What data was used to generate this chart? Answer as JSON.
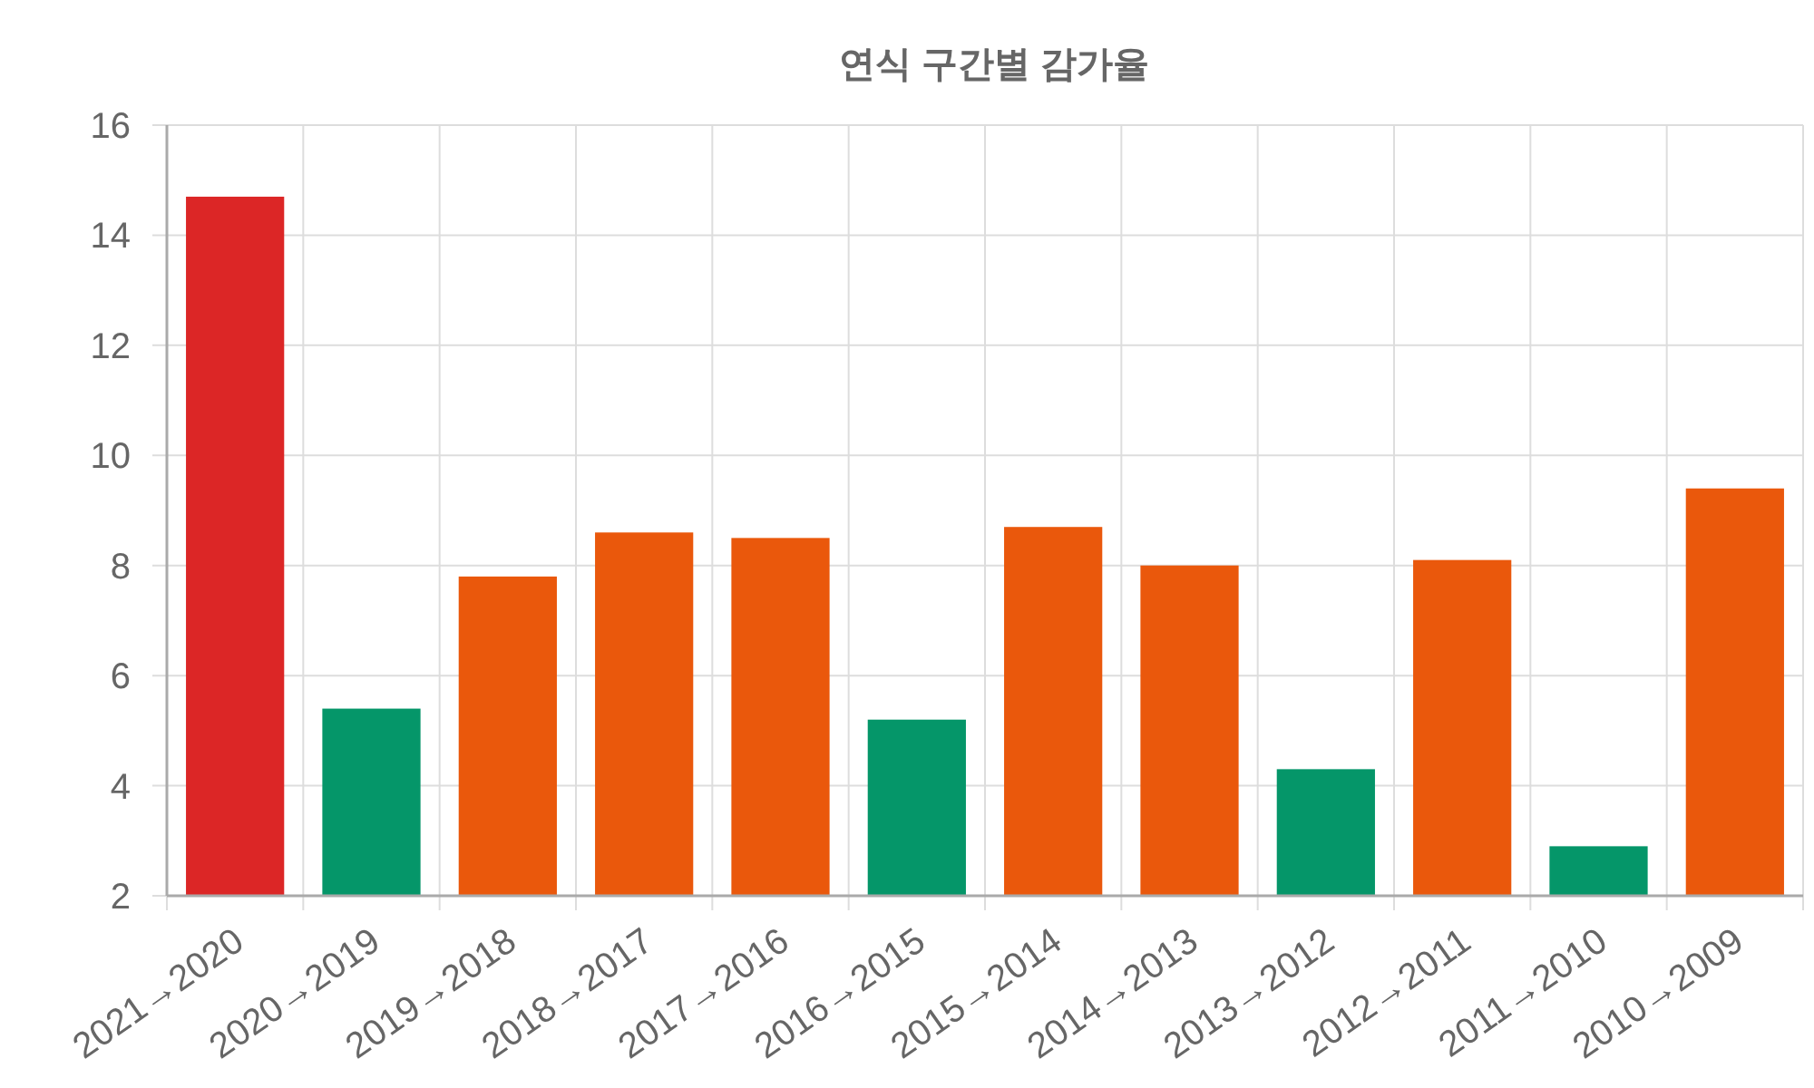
{
  "chart_data": {
    "type": "bar",
    "title": "연식 구간별 감가율",
    "categories": [
      "2021→2020",
      "2020→2019",
      "2019→2018",
      "2018→2017",
      "2017→2016",
      "2016→2015",
      "2015→2014",
      "2014→2013",
      "2013→2012",
      "2012→2011",
      "2011→2010",
      "2010→2009"
    ],
    "values": [
      14.7,
      5.4,
      7.8,
      8.6,
      8.5,
      5.2,
      8.7,
      8.0,
      4.3,
      8.1,
      2.9,
      9.4
    ],
    "colors": [
      "#dc2626",
      "#059669",
      "#ea580c",
      "#ea580c",
      "#ea580c",
      "#059669",
      "#ea580c",
      "#ea580c",
      "#059669",
      "#ea580c",
      "#059669",
      "#ea580c"
    ],
    "ylim": [
      2,
      16
    ],
    "yticks": [
      2,
      4,
      6,
      8,
      10,
      12,
      14,
      16
    ],
    "grid": true
  }
}
